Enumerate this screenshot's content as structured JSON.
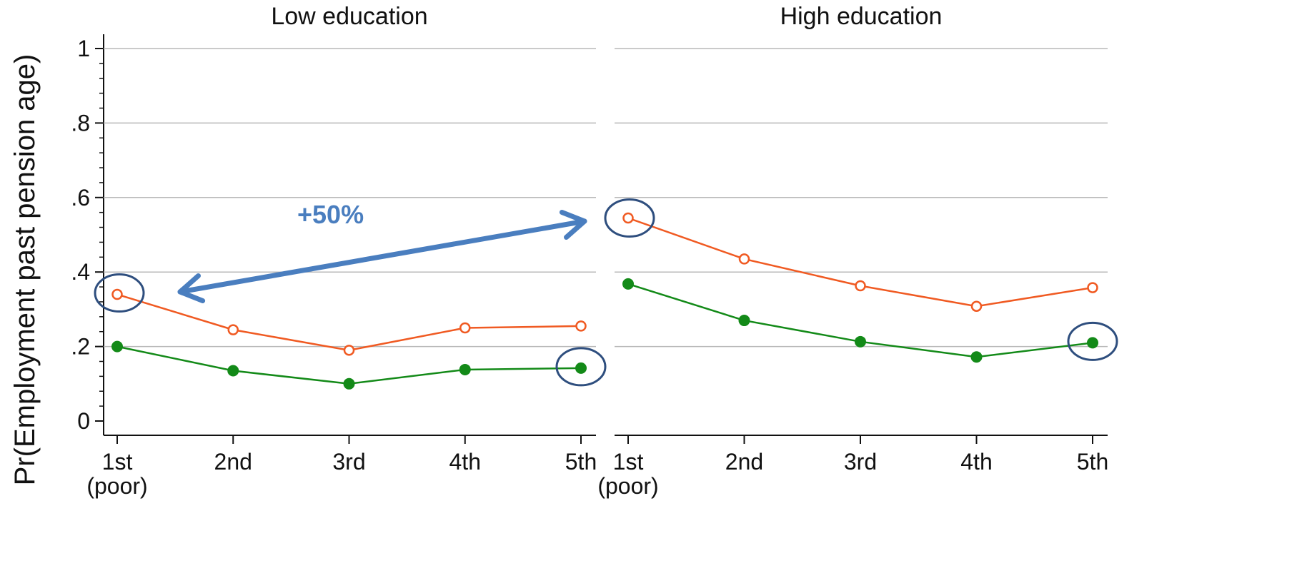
{
  "chart_data": {
    "type": "line",
    "ylabel": "Pr(Employment past pension age)",
    "ylim": [
      0,
      1
    ],
    "yticks": [
      {
        "value": 0,
        "label": "0"
      },
      {
        "value": 0.2,
        "label": ".2"
      },
      {
        "value": 0.4,
        "label": ".4"
      },
      {
        "value": 0.6,
        "label": ".6"
      },
      {
        "value": 0.8,
        "label": ".8"
      },
      {
        "value": 1,
        "label": "1"
      }
    ],
    "grid": true,
    "categories": [
      "1st",
      "2nd",
      "3rd",
      "4th",
      "5th"
    ],
    "first_category_sublabel": "(poor)",
    "panels": [
      {
        "title": "Low education",
        "series": [
          {
            "values": [
              0.34,
              0.245,
              0.19,
              0.25,
              0.255
            ],
            "color": "#f05a22",
            "marker": "hollow-circle"
          },
          {
            "values": [
              0.2,
              0.135,
              0.1,
              0.138,
              0.142
            ],
            "color": "#138a18",
            "marker": "filled-circle"
          }
        ]
      },
      {
        "title": "High education",
        "series": [
          {
            "values": [
              0.545,
              0.435,
              0.363,
              0.308,
              0.358
            ],
            "color": "#f05a22",
            "marker": "hollow-circle"
          },
          {
            "values": [
              0.368,
              0.27,
              0.213,
              0.172,
              0.21
            ],
            "color": "#138a18",
            "marker": "filled-circle"
          }
        ]
      }
    ],
    "annotation": {
      "label": "+50%",
      "color": "#4a7ebf",
      "highlight_color": "#2e4e7e"
    }
  }
}
